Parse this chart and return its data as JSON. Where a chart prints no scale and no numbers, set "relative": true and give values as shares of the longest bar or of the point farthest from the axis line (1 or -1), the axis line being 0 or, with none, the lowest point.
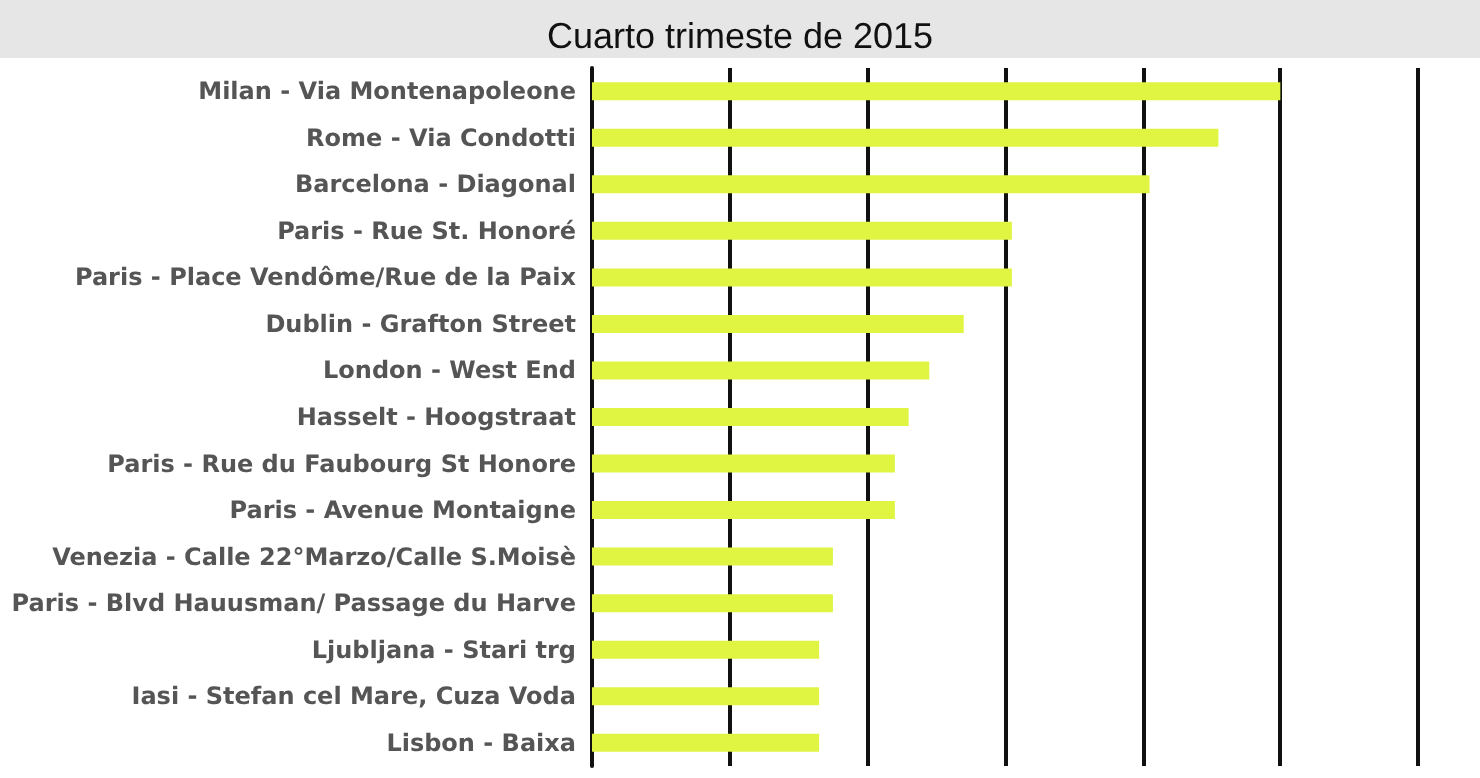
{
  "chart_data": {
    "type": "bar",
    "orientation": "horizontal",
    "relative": true,
    "title": "Cuarto trimeste de 2015",
    "categories": [
      "Milan - Via Montenapoleone",
      "Rome - Via Condotti",
      "Barcelona - Diagonal",
      "Paris - Rue St. Honoré",
      "Paris - Place Vendôme/Rue de la Paix",
      "Dublin - Grafton Street",
      "London - West End",
      "Hasselt - Hoogstraat",
      "Paris - Rue du Faubourg St Honore",
      "Paris - Avenue Montaigne",
      "Venezia - Calle 22°Marzo/Calle S.Moisè",
      "Paris - Blvd Hauusman/ Passage du Harve",
      "Ljubljana - Stari trg",
      "Iasi - Stefan cel Mare, Cuza Voda",
      "Lisbon - Baixa"
    ],
    "values": [
      1,
      0.91,
      0.81,
      0.61,
      0.61,
      0.54,
      0.49,
      0.46,
      0.44,
      0.44,
      0.35,
      0.35,
      0.33,
      0.33,
      0.33
    ],
    "color": "#dff542",
    "grid": "x"
  }
}
